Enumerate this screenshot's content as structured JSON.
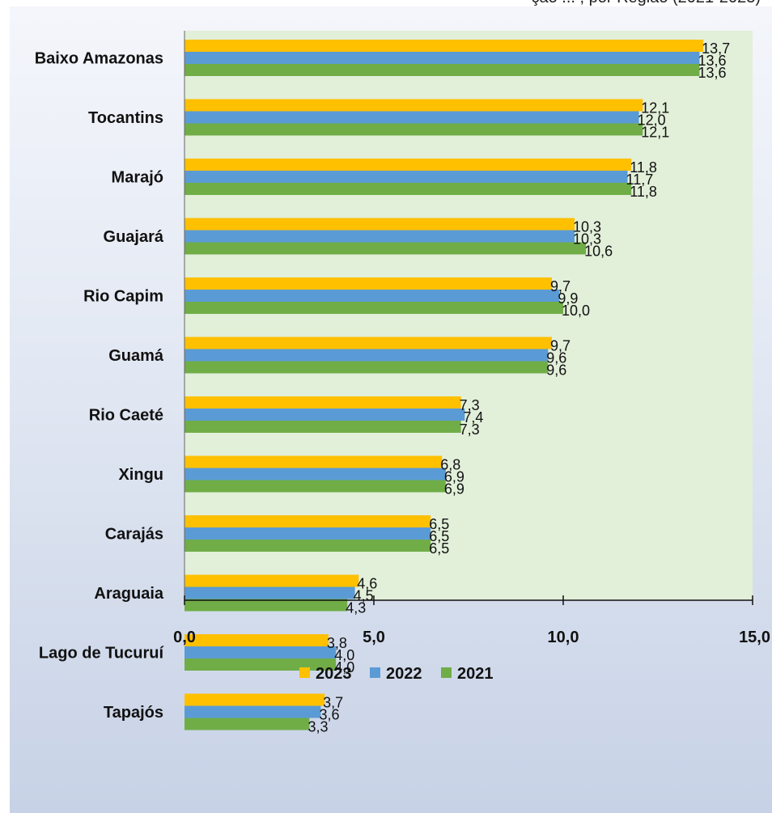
{
  "header": {
    "cut_text": "ção ... , por Região (2021-2023)"
  },
  "chart_data": {
    "type": "bar",
    "orientation": "horizontal",
    "categories": [
      "Baixo Amazonas",
      "Tocantins",
      "Marajó",
      "Guajará",
      "Rio Capim",
      "Guamá",
      "Rio Caeté",
      "Xingu",
      "Carajás",
      "Araguaia",
      "Lago de Tucuruí",
      "Tapajós"
    ],
    "series": [
      {
        "name": "2023",
        "color": "#ffc000",
        "values": [
          13.7,
          12.1,
          11.8,
          10.3,
          9.7,
          9.7,
          7.3,
          6.8,
          6.5,
          4.6,
          3.8,
          3.7
        ]
      },
      {
        "name": "2022",
        "color": "#5b9bd5",
        "values": [
          13.6,
          12.0,
          11.7,
          10.3,
          9.9,
          9.6,
          7.4,
          6.9,
          6.5,
          4.5,
          4.0,
          3.6
        ]
      },
      {
        "name": "2021",
        "color": "#70ad47",
        "values": [
          13.6,
          12.1,
          11.8,
          10.6,
          10.0,
          9.6,
          7.3,
          6.9,
          6.5,
          4.3,
          4.0,
          3.3
        ]
      }
    ],
    "value_labels": [
      [
        "13,7",
        "12,1",
        "11,8",
        "10,3",
        "9,7",
        "9,7",
        "7,3",
        "6,8",
        "6,5",
        "4,6",
        "3,8",
        "3,7"
      ],
      [
        "13,6",
        "12,0",
        "11,7",
        "10,3",
        "9,9",
        "9,6",
        "7,4",
        "6,9",
        "6,5",
        "4,5",
        "4,0",
        "3,6"
      ],
      [
        "13,6",
        "12,1",
        "11,8",
        "10,6",
        "10,0",
        "9,6",
        "7,3",
        "6,9",
        "6,5",
        "4,3",
        "4,0",
        "3,3"
      ]
    ],
    "x_ticks": [
      "0,0",
      "5,0",
      "10,0",
      "15,0"
    ],
    "xlim": [
      0,
      15
    ],
    "plot_bg": "#e2efd9",
    "legend": {
      "position": "bottom"
    },
    "grid": false
  }
}
